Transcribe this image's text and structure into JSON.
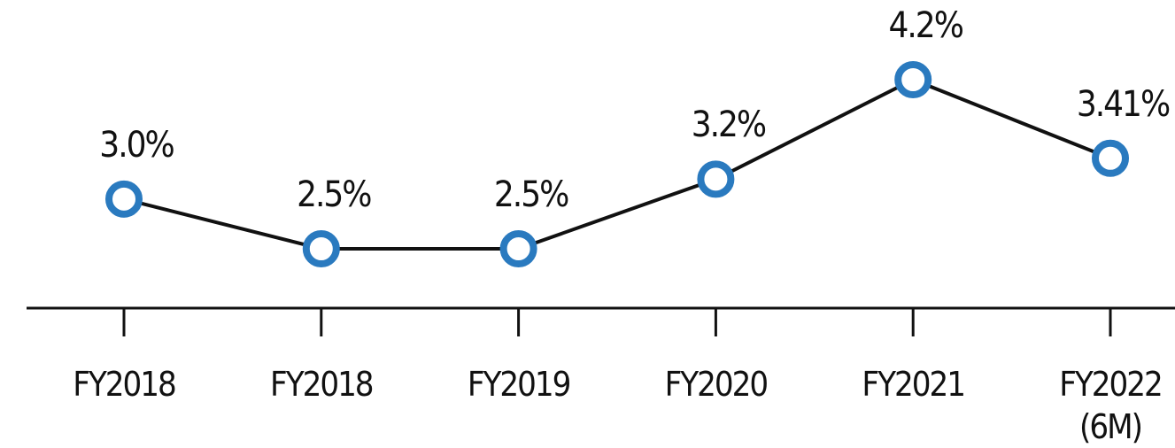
{
  "chart_data": {
    "type": "line",
    "categories": [
      "FY2018",
      "FY2018",
      "FY2019",
      "FY2020",
      "FY2021",
      "FY2022\n(6M)"
    ],
    "series": [
      {
        "color": "#2a7abf",
        "values": [
          3.0,
          2.5,
          2.5,
          3.2,
          4.2,
          3.41
        ],
        "value_labels": [
          "3.0%",
          "2.5%",
          "2.5%",
          "3.2%",
          "4.2%",
          "3.41%"
        ]
      }
    ]
  }
}
